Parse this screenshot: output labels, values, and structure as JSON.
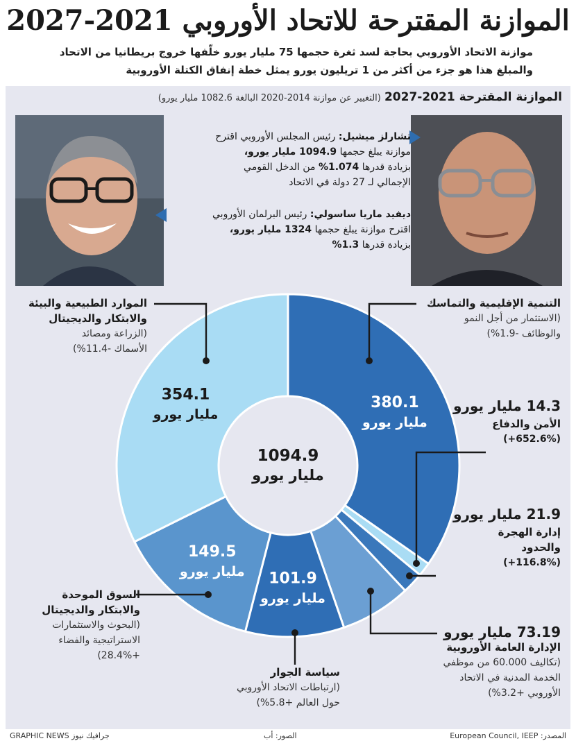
{
  "title": "الموازنة المقترحة للاتحاد الأوروبي 2021-2027",
  "subtitle_line1": "موازنة الاتحاد الأوروبي بحاجة لسد ثغرة حجمها 75 مليار يورو خلّفها خروج بريطانيا من الاتحاد",
  "subtitle_line2": "والمبلغ هذا هو جزء من أكثر من 1 تريليون يورو يمثل خطة إنفاق الكتلة الأوروبية",
  "section_title": "الموازنة المقترحة 2021-2027",
  "section_note": "(التغيير عن موازنة  2014-2020 البالغة 1082.6 مليار يورو)",
  "michel": {
    "name": "تشارلز ميشيل:",
    "text1": "رئيس المجلس الأوروبي اقترح",
    "text2a": "موازنة يبلغ حجمها",
    "text2b": "1094.9 مليار يورو،",
    "text3a": "بزيادة قدرها",
    "text3b": "1.074%",
    "text3c": "من الدخل القومي",
    "text4": "الإجمالي لـ 27 دولة في الاتحاد"
  },
  "sassoli": {
    "name": "ديفيد ماريا ساسولي:",
    "text1": "رئيس البرلمان الأوروبي",
    "text2a": "اقترح موازنة يبلغ حجمها",
    "text2b": "1324 مليار يورو،",
    "text3a": "بزيادة قدرها",
    "text3b": "1.3%"
  },
  "center": {
    "value": "1094.9",
    "unit": "مليار يورو"
  },
  "unit": "مليار يورو",
  "labels": {
    "cohesion": {
      "h": "التنمية الإقليمية والتماسك",
      "s1": "(الاستثمار من أجل النمو",
      "s2": "والوظائف -1.9%)"
    },
    "security": {
      "v": "14.3 مليار يورو",
      "h": "الأمن والدفاع",
      "c": "(+652.6%)"
    },
    "migration": {
      "v": "21.9 مليار يورو",
      "h1": "إدارة الهجرة",
      "h2": "والحدود",
      "c": "(+116.8%)"
    },
    "admin": {
      "v": "73.19 مليار يورو",
      "h": "الإدارة العامة الأوروبية",
      "s1": "(تكاليف 60.000 من موظفي",
      "s2": "الخدمة المدنية في الاتحاد",
      "s3": "الأوروبي +3.2%)"
    },
    "neighbour": {
      "h": "سياسة الجوار",
      "s1": "(ارتباطات الاتحاد الأوروبي",
      "s2": "حول العالم +5.8%)"
    },
    "single_market": {
      "h1": "السوق الموحدة",
      "h2": "والابتكار والديجيتال",
      "s1": "(البحوث والاستثمارات",
      "s2": "الاستراتيجية والفضاء",
      "s3": "+28.4%)"
    },
    "natural": {
      "h1": "الموارد الطبيعية والبيئة",
      "h2": "والابتكار والديجيتال",
      "s1": "(الزراعة ومصائد",
      "s2": "الأسماك -11.4%)"
    }
  },
  "footer": {
    "brand": "GRAPHIC NEWS جرافيك نيوز",
    "photos": "الصور: أب",
    "source": "المصدر: European Council, IEEP"
  },
  "chart_data": {
    "type": "pie",
    "title": "الموازنة المقترحة 2021-2027",
    "total": 1094.9,
    "unit": "مليار يورو",
    "categories": [
      "التنمية الإقليمية والتماسك",
      "الأمن والدفاع",
      "إدارة الهجرة والحدود",
      "الإدارة العامة الأوروبية",
      "سياسة الجوار",
      "السوق الموحدة والابتكار والديجيتال",
      "الموارد الطبيعية والبيئة"
    ],
    "values": [
      380.1,
      14.3,
      21.9,
      73.19,
      101.9,
      149.5,
      354.1
    ],
    "colors": [
      "#2f6eb5",
      "#a9dcf4",
      "#3a78bb",
      "#6b9fd3",
      "#2f6eb5",
      "#5a95cd",
      "#a9dcf4"
    ],
    "show_value_labels": [
      true,
      false,
      false,
      false,
      true,
      true,
      true
    ],
    "value_label_colors": [
      "#ffffff",
      "",
      "",
      "",
      "#ffffff",
      "#ffffff",
      "#1a1a1a"
    ]
  }
}
